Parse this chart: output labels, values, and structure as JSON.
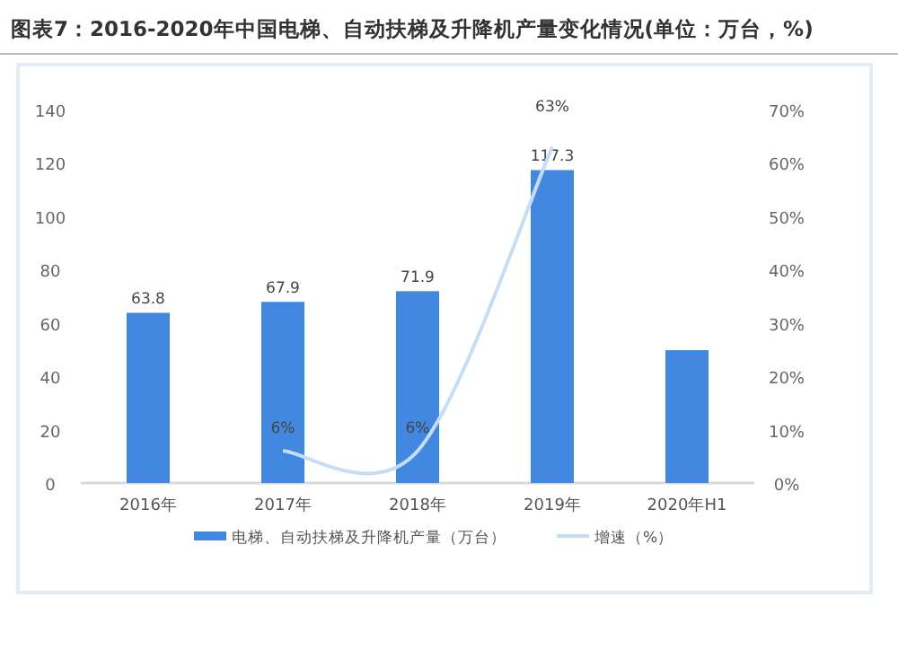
{
  "chart_data": {
    "type": "bar",
    "title": "图表7：2016-2020年中国电梯、自动扶梯及升降机产量变化情况(单位：万台，%)",
    "categories": [
      "2016年",
      "2017年",
      "2018年",
      "2019年",
      "2020年H1"
    ],
    "series": [
      {
        "name": "电梯、自动扶梯及升降机产量（万台）",
        "color": "#4287e0",
        "values": [
          63.8,
          67.9,
          71.9,
          117.3,
          49.8
        ],
        "value_labels": [
          "63.8",
          "67.9",
          "71.9",
          "117.3",
          null
        ]
      },
      {
        "name": "增速（%）",
        "type": "line",
        "axis": "y2",
        "color": "#c6ddf6",
        "values": [
          null,
          6,
          6,
          63,
          null
        ],
        "value_labels": [
          null,
          "6%",
          "6%",
          "63%",
          null
        ]
      }
    ],
    "ylim": [
      0,
      140
    ],
    "yticks": [
      0,
      20,
      40,
      60,
      80,
      100,
      120,
      140
    ],
    "y2lim": [
      0,
      70
    ],
    "y2ticks": [
      {
        "value": 0,
        "label": "0%"
      },
      {
        "value": 10,
        "label": "10%"
      },
      {
        "value": 20,
        "label": "20%"
      },
      {
        "value": 30,
        "label": "30%"
      },
      {
        "value": 40,
        "label": "40%"
      },
      {
        "value": 50,
        "label": "50%"
      },
      {
        "value": 60,
        "label": "60%"
      },
      {
        "value": 70,
        "label": "70%"
      }
    ],
    "grid": false,
    "legend": "bottom"
  }
}
